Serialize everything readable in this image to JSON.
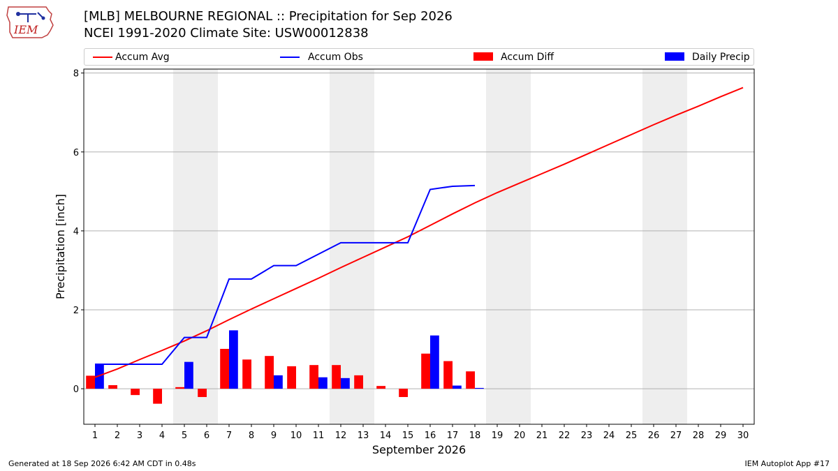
{
  "header": {
    "title_line1": "[MLB] MELBOURNE REGIONAL :: Precipitation for Sep 2026",
    "title_line2": "NCEI 1991-2020 Climate Site: USW00012838",
    "logo_text": "IEM"
  },
  "legend": [
    {
      "label": "Accum Avg",
      "kind": "line",
      "color": "#ff0000"
    },
    {
      "label": "Accum Obs",
      "kind": "line",
      "color": "#0000ff"
    },
    {
      "label": "Accum Diff",
      "kind": "bar",
      "color": "#ff0000"
    },
    {
      "label": "Daily Precip",
      "kind": "bar",
      "color": "#0000ff"
    }
  ],
  "footer": {
    "left": "Generated at 18 Sep 2026 6:42 AM CDT in 0.48s",
    "right": "IEM Autoplot App #17"
  },
  "chart_data": {
    "type": "bar",
    "xlabel": "September 2026",
    "ylabel": "Precipitation [inch]",
    "ylim": [
      -0.9,
      8.1
    ],
    "yticks": [
      0,
      2,
      4,
      6,
      8
    ],
    "xlim": [
      0.5,
      30.5
    ],
    "x": [
      1,
      2,
      3,
      4,
      5,
      6,
      7,
      8,
      9,
      10,
      11,
      12,
      13,
      14,
      15,
      16,
      17,
      18,
      19,
      20,
      21,
      22,
      23,
      24,
      25,
      26,
      27,
      28,
      29,
      30
    ],
    "grid": "horizontal",
    "weekend_shading": [
      [
        4.5,
        6.5
      ],
      [
        11.5,
        13.5
      ],
      [
        18.5,
        20.5
      ],
      [
        25.5,
        27.5
      ]
    ],
    "series": [
      {
        "name": "Accum Avg",
        "type": "line",
        "color": "#ff0000",
        "x": [
          1,
          2,
          3,
          4,
          5,
          6,
          7,
          8,
          9,
          10,
          11,
          12,
          13,
          14,
          15,
          16,
          17,
          18,
          19,
          20,
          21,
          22,
          23,
          24,
          25,
          26,
          27,
          28,
          29,
          30
        ],
        "values": [
          0.29,
          0.5,
          0.74,
          0.97,
          1.21,
          1.47,
          1.75,
          2.02,
          2.28,
          2.54,
          2.8,
          3.07,
          3.33,
          3.59,
          3.85,
          4.14,
          4.43,
          4.71,
          4.97,
          5.21,
          5.45,
          5.69,
          5.94,
          6.19,
          6.44,
          6.69,
          6.93,
          7.16,
          7.4,
          7.63
        ]
      },
      {
        "name": "Accum Obs",
        "type": "line",
        "color": "#0000ff",
        "x": [
          1,
          2,
          3,
          4,
          5,
          6,
          7,
          8,
          9,
          10,
          11,
          12,
          13,
          14,
          15,
          16,
          17,
          18
        ],
        "values": [
          0.62,
          0.62,
          0.62,
          0.62,
          1.3,
          1.3,
          2.78,
          2.78,
          3.12,
          3.12,
          3.41,
          3.7,
          3.7,
          3.7,
          3.7,
          5.05,
          5.13,
          5.15
        ]
      },
      {
        "name": "Accum Diff",
        "type": "bar",
        "color": "#ff0000",
        "x": [
          1,
          2,
          3,
          4,
          5,
          6,
          7,
          8,
          9,
          10,
          11,
          12,
          13,
          14,
          15,
          16,
          17,
          18
        ],
        "values": [
          0.33,
          0.09,
          -0.16,
          -0.38,
          0.04,
          -0.21,
          1.01,
          0.74,
          0.83,
          0.57,
          0.6,
          0.6,
          0.34,
          0.07,
          -0.21,
          0.89,
          0.7,
          0.44
        ]
      },
      {
        "name": "Daily Precip",
        "type": "bar",
        "color": "#0000ff",
        "x": [
          1,
          2,
          3,
          4,
          5,
          6,
          7,
          8,
          9,
          10,
          11,
          12,
          13,
          14,
          15,
          16,
          17,
          18
        ],
        "values": [
          0.62,
          0,
          0,
          0,
          0.68,
          0,
          1.48,
          0,
          0.34,
          0,
          0.29,
          0.27,
          0,
          0,
          0,
          1.35,
          0.08,
          0.02
        ]
      }
    ]
  }
}
